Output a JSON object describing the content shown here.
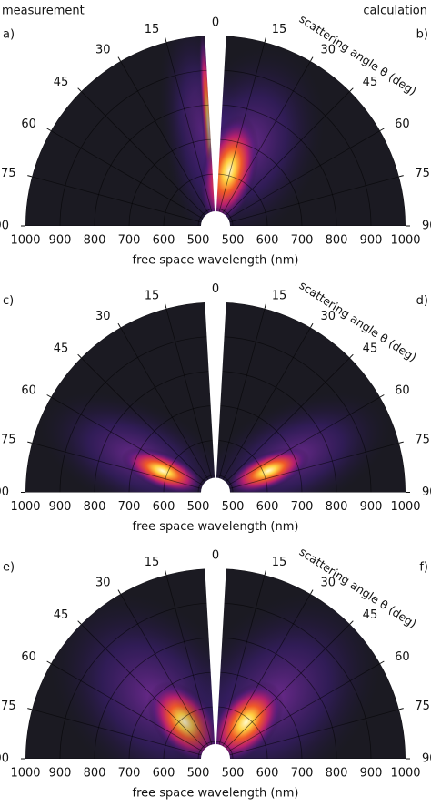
{
  "title_left": "measurement",
  "title_right": "calculation",
  "chart_data": [
    {
      "type": "polar_heatmap",
      "panel_left": "a)",
      "panel_right": "b)",
      "xlabel": "free space wavelength (nm)",
      "angle_label": "scattering angle θ (deg)",
      "rlim": [
        450,
        1000
      ],
      "rticks": [
        500,
        600,
        700,
        800,
        900,
        1000
      ],
      "thetalim": [
        0,
        90
      ],
      "thetaticks": [
        0,
        15,
        30,
        45,
        60,
        75,
        90
      ]
    },
    {
      "type": "polar_heatmap",
      "panel_left": "c)",
      "panel_right": "d)",
      "xlabel": "free space wavelength (nm)",
      "angle_label": "scattering angle θ (deg)",
      "rlim": [
        450,
        1000
      ],
      "rticks": [
        500,
        600,
        700,
        800,
        900,
        1000
      ],
      "thetalim": [
        0,
        90
      ],
      "thetaticks": [
        0,
        15,
        30,
        45,
        60,
        75,
        90
      ]
    },
    {
      "type": "polar_heatmap",
      "panel_left": "e)",
      "panel_right": "f)",
      "xlabel": "free space wavelength (nm)",
      "angle_label": "scattering angle θ (deg)",
      "rlim": [
        450,
        1000
      ],
      "rticks": [
        500,
        600,
        700,
        800,
        900,
        1000
      ],
      "thetalim": [
        0,
        90
      ],
      "thetaticks": [
        0,
        15,
        30,
        45,
        60,
        75,
        90
      ]
    }
  ]
}
